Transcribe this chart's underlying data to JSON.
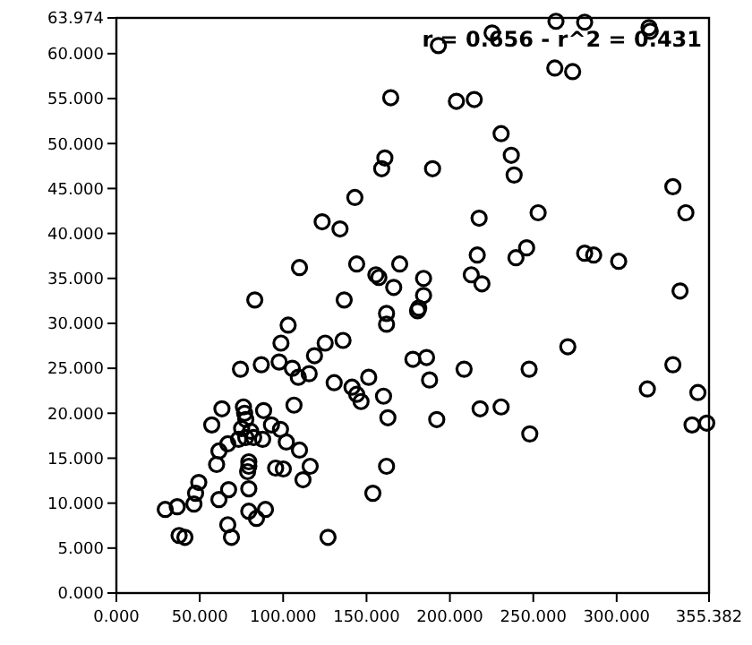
{
  "chart_data": {
    "type": "scatter",
    "marker": "circle",
    "grid": false,
    "annotations": [
      "r = 0.656 - r^2 = 0.431"
    ],
    "xlim": [
      0,
      355.382
    ],
    "xticks": [
      {
        "value": 0,
        "label": "0.000"
      },
      {
        "value": 50,
        "label": "50.000"
      },
      {
        "value": 100,
        "label": "100.000"
      },
      {
        "value": 150,
        "label": "150.000"
      },
      {
        "value": 200,
        "label": "200.000"
      },
      {
        "value": 250,
        "label": "250.000"
      },
      {
        "value": 300,
        "label": "300.000"
      },
      {
        "value": 355.382,
        "label": "355.382"
      }
    ],
    "ylim": [
      0,
      63.974
    ],
    "yticks": [
      {
        "value": 0,
        "label": "0.000"
      },
      {
        "value": 5,
        "label": "5.000"
      },
      {
        "value": 10,
        "label": "10.000"
      },
      {
        "value": 15,
        "label": "15.000"
      },
      {
        "value": 20,
        "label": "20.000"
      },
      {
        "value": 25,
        "label": "25.000"
      },
      {
        "value": 30,
        "label": "30.000"
      },
      {
        "value": 35,
        "label": "35.000"
      },
      {
        "value": 40,
        "label": "40.000"
      },
      {
        "value": 45,
        "label": "45.000"
      },
      {
        "value": 50,
        "label": "50.000"
      },
      {
        "value": 55,
        "label": "55.000"
      },
      {
        "value": 60,
        "label": "60.000"
      },
      {
        "value": 63.974,
        "label": "63.974"
      }
    ],
    "series": [
      {
        "color": "#000000",
        "x": [
          83.0,
          136.6,
          103.0,
          98.7,
          125.2,
          135.9,
          118.8,
          74.4,
          86.9,
          97.6,
          105.5,
          109.1,
          115.6,
          130.6,
          141.3,
          144.1,
          146.7,
          151.3,
          160.2,
          162.8,
          162.0,
          162.0,
          177.8,
          180.6,
          184.2,
          187.8,
          63.3,
          57.2,
          76.2,
          76.9,
          77.6,
          75.1,
          80.5,
          82.3,
          77.6,
          73.3,
          87.7,
          88.3,
          93.0,
          98.4,
          106.5,
          101.9,
          109.8,
          66.8,
          61.5,
          60.1,
          79.4,
          79.4,
          78.7,
          95.5,
          100.1,
          116.2,
          111.9,
          162.0,
          153.8,
          49.4,
          47.5,
          46.5,
          36.5,
          29.3,
          61.5,
          67.3,
          79.4,
          79.4,
          89.4,
          84.0,
          66.8,
          69.0,
          37.6,
          41.1,
          126.9,
          181.3,
          219.2,
          338.0,
          186.0,
          208.5,
          247.5,
          270.7,
          192.1,
          218.1,
          230.7,
          247.9,
          333.7,
          318.4,
          348.7,
          345.2,
          354.0,
          193.1,
          225.3,
          263.6,
          280.8,
          319.4,
          320.1,
          262.9,
          273.6,
          203.9,
          214.6,
          230.7,
          236.8,
          238.5,
          189.6,
          333.7,
          341.5,
          217.5,
          252.9,
          216.4,
          239.6,
          246.0,
          280.8,
          286.2,
          301.2,
          212.8,
          184.2,
          164.5,
          161.0,
          159.1,
          143.0,
          123.4,
          134.1,
          109.8,
          144.1,
          155.6,
          157.4,
          169.9,
          166.3
        ],
        "values": [
          32.6,
          32.6,
          29.8,
          27.8,
          27.8,
          28.1,
          26.4,
          24.9,
          25.4,
          25.7,
          25.0,
          24.0,
          24.4,
          23.4,
          22.9,
          22.1,
          21.3,
          24.0,
          21.9,
          19.5,
          31.1,
          29.9,
          26.0,
          31.4,
          33.1,
          23.7,
          20.5,
          18.7,
          20.7,
          20.0,
          19.3,
          18.3,
          18.0,
          17.3,
          17.3,
          17.1,
          17.1,
          20.3,
          18.7,
          18.2,
          20.9,
          16.8,
          15.9,
          16.6,
          15.8,
          14.3,
          14.6,
          14.1,
          13.5,
          13.9,
          13.8,
          14.1,
          12.6,
          14.1,
          11.1,
          12.3,
          11.1,
          9.9,
          9.6,
          9.3,
          10.4,
          11.5,
          11.6,
          9.1,
          9.3,
          8.3,
          7.6,
          6.2,
          6.4,
          6.2,
          6.2,
          31.7,
          34.4,
          33.6,
          26.2,
          24.9,
          24.9,
          27.4,
          19.3,
          20.5,
          20.7,
          17.7,
          25.4,
          22.7,
          22.3,
          18.7,
          18.9,
          60.9,
          62.3,
          63.6,
          63.5,
          62.9,
          62.5,
          58.4,
          58.0,
          54.7,
          54.9,
          51.1,
          48.7,
          46.5,
          47.2,
          45.2,
          42.3,
          41.7,
          42.3,
          37.6,
          37.3,
          38.4,
          37.8,
          37.6,
          36.9,
          35.4,
          35.0,
          55.1,
          48.4,
          47.2,
          44.0,
          41.3,
          40.5,
          36.2,
          36.6,
          35.4,
          35.1,
          36.6,
          34.0
        ]
      }
    ]
  }
}
